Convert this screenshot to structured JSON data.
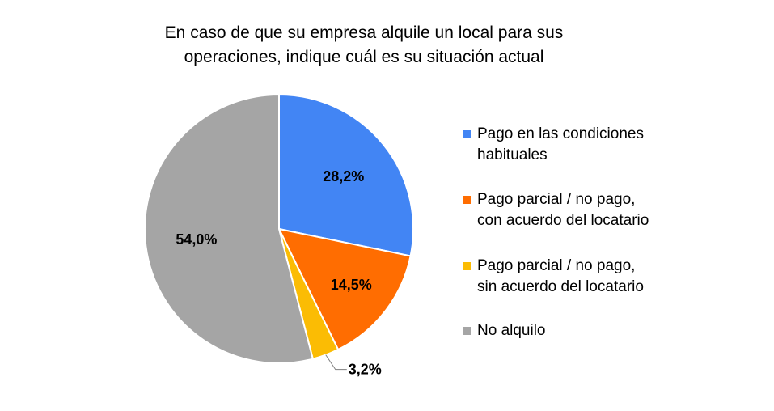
{
  "chart_data": {
    "type": "pie",
    "title_lines": [
      "En caso de que su empresa alquile un local para sus",
      "operaciones, indique cuál es su situación actual"
    ],
    "categories": [
      "Pago en las condiciones habituales",
      "Pago parcial / no pago, con acuerdo del locatario",
      "Pago parcial / no pago, sin acuerdo del locatario",
      "No alquilo"
    ],
    "legend_lines": [
      [
        "Pago en las condiciones",
        "habituales"
      ],
      [
        "Pago parcial / no pago,",
        "con acuerdo del locatario"
      ],
      [
        "Pago parcial / no pago,",
        "sin acuerdo del locatario"
      ],
      [
        "No alquilo"
      ]
    ],
    "values": [
      28.2,
      14.5,
      3.2,
      54.0
    ],
    "value_labels": [
      "28,2%",
      "14,5%",
      "3,2%",
      "54,0%"
    ],
    "colors": [
      "#4285F4",
      "#FF6D01",
      "#FBBC04",
      "#A5A5A5"
    ],
    "legend_position": "right"
  }
}
